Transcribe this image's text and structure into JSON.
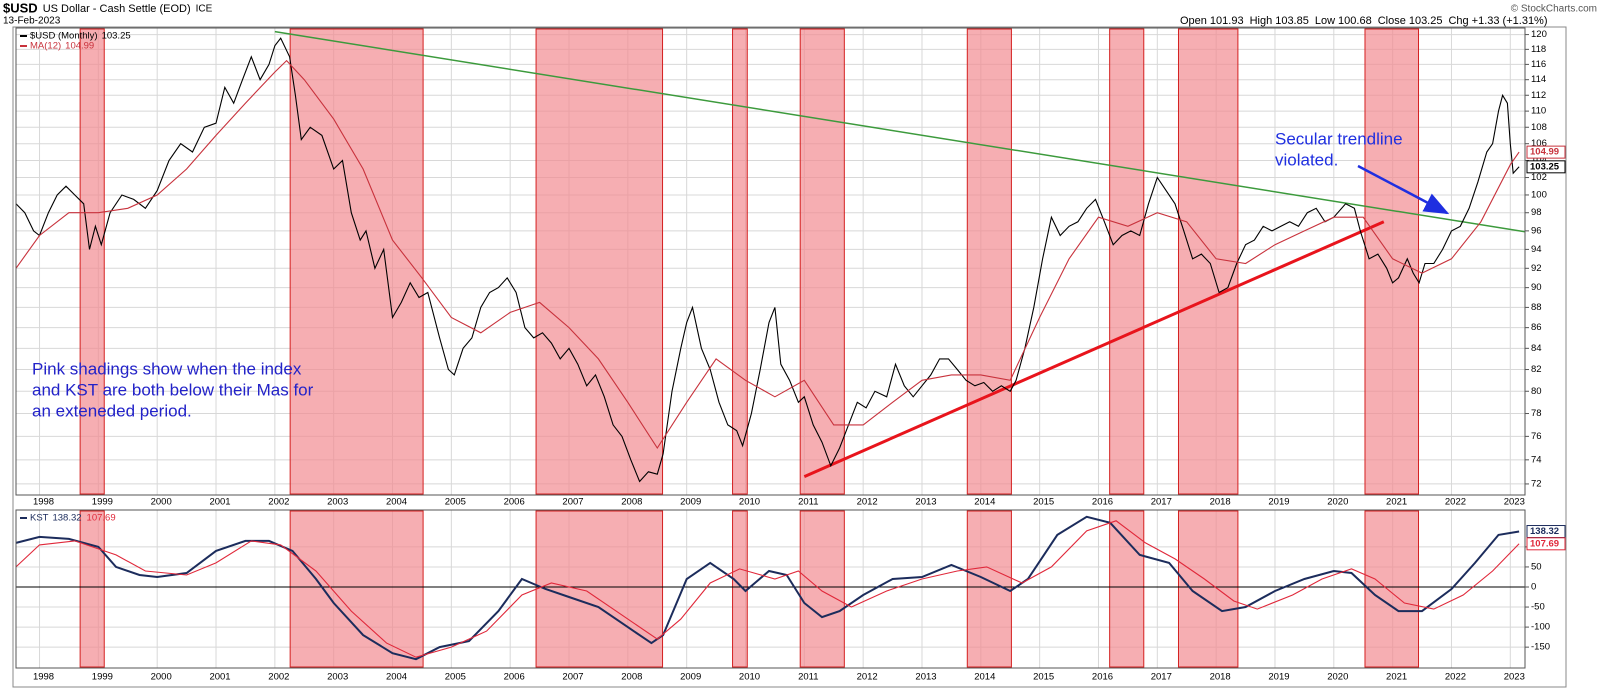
{
  "header": {
    "symbol": "$USD",
    "name": "US Dollar - Cash Settle (EOD)",
    "exchange": "ICE",
    "date": "13-Feb-2023",
    "quote": [
      {
        "label": "Open",
        "value": 101.93
      },
      {
        "label": "High",
        "value": 103.85
      },
      {
        "label": "Low",
        "value": 100.68
      },
      {
        "label": "Close",
        "value": 103.25
      },
      {
        "label": "Chg",
        "value": "+1.33 (+1.31%)"
      }
    ],
    "credit": "© StockCharts.com"
  },
  "chart_data": [
    {
      "type": "line",
      "log": true,
      "grid": true,
      "xlim": [
        1997.6,
        2023.25
      ],
      "xticks": [
        1998,
        1999,
        2000,
        2001,
        2002,
        2003,
        2004,
        2005,
        2006,
        2007,
        2008,
        2009,
        2010,
        2011,
        2012,
        2013,
        2014,
        2015,
        2016,
        2017,
        2018,
        2019,
        2020,
        2021,
        2022,
        2023
      ],
      "ylim": [
        71.1,
        120.9
      ],
      "yticks": [
        72,
        74,
        76,
        78,
        80,
        82,
        84,
        86,
        88,
        90,
        92,
        94,
        96,
        98,
        100,
        102,
        104,
        106,
        108,
        110,
        112,
        114,
        116,
        118,
        120
      ],
      "shaded_periods": [
        [
          1998.69,
          1999.1
        ],
        [
          2002.26,
          2004.52
        ],
        [
          2006.44,
          2008.59
        ],
        [
          2009.78,
          2010.03
        ],
        [
          2010.93,
          2011.68
        ],
        [
          2013.77,
          2014.52
        ],
        [
          2016.19,
          2016.77
        ],
        [
          2017.36,
          2018.37
        ],
        [
          2020.53,
          2021.44
        ]
      ],
      "shade_color": "#f28b92",
      "series": [
        {
          "name": "$USD (Monthly)",
          "color": "#000000",
          "x": [
            1997.6,
            1997.75,
            1997.9,
            1998.0,
            1998.15,
            1998.3,
            1998.45,
            1998.6,
            1998.75,
            1998.85,
            1998.95,
            1999.05,
            1999.2,
            1999.4,
            1999.6,
            1999.8,
            2000.0,
            2000.2,
            2000.4,
            2000.6,
            2000.8,
            2001.0,
            2001.15,
            2001.3,
            2001.45,
            2001.6,
            2001.75,
            2001.9,
            2002.0,
            2002.1,
            2002.25,
            2002.35,
            2002.45,
            2002.6,
            2002.8,
            2003.0,
            2003.15,
            2003.3,
            2003.45,
            2003.55,
            2003.7,
            2003.85,
            2004.0,
            2004.15,
            2004.3,
            2004.45,
            2004.6,
            2004.8,
            2004.95,
            2005.05,
            2005.2,
            2005.35,
            2005.5,
            2005.65,
            2005.8,
            2005.95,
            2006.1,
            2006.25,
            2006.4,
            2006.55,
            2006.7,
            2006.85,
            2007.0,
            2007.15,
            2007.3,
            2007.45,
            2007.6,
            2007.75,
            2007.9,
            2008.05,
            2008.2,
            2008.35,
            2008.5,
            2008.6,
            2008.75,
            2008.9,
            2009.0,
            2009.1,
            2009.25,
            2009.4,
            2009.55,
            2009.7,
            2009.85,
            2009.95,
            2010.1,
            2010.25,
            2010.4,
            2010.5,
            2010.6,
            2010.75,
            2010.9,
            2011.0,
            2011.15,
            2011.3,
            2011.45,
            2011.6,
            2011.75,
            2011.9,
            2012.05,
            2012.2,
            2012.4,
            2012.55,
            2012.7,
            2012.85,
            2013.0,
            2013.15,
            2013.3,
            2013.45,
            2013.6,
            2013.75,
            2013.9,
            2014.05,
            2014.2,
            2014.35,
            2014.5,
            2014.6,
            2014.75,
            2014.9,
            2015.05,
            2015.2,
            2015.35,
            2015.5,
            2015.65,
            2015.8,
            2015.95,
            2016.1,
            2016.25,
            2016.4,
            2016.55,
            2016.7,
            2016.85,
            2017.0,
            2017.15,
            2017.3,
            2017.45,
            2017.6,
            2017.75,
            2017.9,
            2018.05,
            2018.2,
            2018.35,
            2018.5,
            2018.65,
            2018.8,
            2018.95,
            2019.1,
            2019.25,
            2019.4,
            2019.55,
            2019.7,
            2019.85,
            2020.0,
            2020.2,
            2020.35,
            2020.45,
            2020.6,
            2020.75,
            2020.9,
            2021.0,
            2021.1,
            2021.25,
            2021.35,
            2021.45,
            2021.55,
            2021.7,
            2021.85,
            2022.0,
            2022.15,
            2022.3,
            2022.45,
            2022.6,
            2022.7,
            2022.8,
            2022.87,
            2022.95,
            2023.0,
            2023.05,
            2023.15
          ],
          "values": [
            99,
            98,
            96,
            95.5,
            98,
            100,
            101,
            100,
            99,
            94,
            96.5,
            94.5,
            98,
            100,
            99.5,
            98.5,
            100.5,
            104,
            106,
            105,
            108,
            108.5,
            113,
            111,
            114,
            117,
            114,
            116,
            118.5,
            119.5,
            117,
            112,
            106.5,
            108,
            107,
            103,
            104,
            98,
            95,
            96,
            92,
            94,
            87,
            88.5,
            90.5,
            89,
            89.5,
            85,
            82,
            81.5,
            84,
            85,
            88,
            89.5,
            90,
            91,
            89.5,
            86,
            85,
            85.5,
            84.5,
            83,
            84,
            82.5,
            80.5,
            81.5,
            79.5,
            77,
            76,
            74,
            72.2,
            73,
            72.8,
            74.5,
            80,
            84,
            86.5,
            88,
            84,
            82,
            79,
            77,
            76.5,
            75.2,
            78,
            82,
            86.5,
            88,
            82.5,
            81,
            79,
            79.5,
            77,
            75.5,
            73.5,
            75,
            77,
            79,
            78.5,
            80,
            79.5,
            82.5,
            80.5,
            79.5,
            80.5,
            81.5,
            83,
            83,
            82,
            81,
            80.5,
            80.8,
            80,
            80.5,
            80,
            81,
            84,
            88,
            93,
            97.5,
            95.5,
            96.5,
            97,
            98.5,
            99.5,
            97,
            94.5,
            95.5,
            96,
            95.5,
            99,
            102,
            100.5,
            99,
            96,
            93,
            93.5,
            92.5,
            89.5,
            90,
            92.5,
            94.5,
            95,
            96.5,
            96,
            96.5,
            97,
            96.5,
            98,
            98.5,
            97,
            97.5,
            99,
            98.5,
            96,
            93,
            93.5,
            92,
            90.5,
            91,
            93,
            91.5,
            90.5,
            92.5,
            92.5,
            94,
            96,
            96.5,
            98.5,
            101.5,
            105,
            106,
            110,
            112,
            111,
            106,
            102.5,
            103.25
          ]
        },
        {
          "name": "MA(12)",
          "color": "#c8323c",
          "x": [
            1997.6,
            1998.0,
            1998.5,
            1999.0,
            1999.5,
            2000.0,
            2000.5,
            2001.0,
            2001.5,
            2002.0,
            2002.2,
            2002.5,
            2003.0,
            2003.5,
            2004.0,
            2004.5,
            2005.0,
            2005.5,
            2006.0,
            2006.5,
            2007.0,
            2007.5,
            2008.0,
            2008.5,
            2009.0,
            2009.5,
            2010.0,
            2010.5,
            2011.0,
            2011.5,
            2012.0,
            2012.5,
            2013.0,
            2013.5,
            2014.0,
            2014.5,
            2015.0,
            2015.5,
            2016.0,
            2016.5,
            2017.0,
            2017.5,
            2018.0,
            2018.5,
            2019.0,
            2019.5,
            2020.0,
            2020.5,
            2021.0,
            2021.5,
            2022.0,
            2022.5,
            2023.0,
            2023.15
          ],
          "values": [
            92,
            95.5,
            98,
            98,
            98.5,
            100,
            103,
            107,
            111,
            115,
            116.5,
            114,
            109,
            103,
            95,
            91,
            87,
            85.5,
            87.5,
            88.5,
            86,
            83,
            79,
            75,
            79,
            83,
            81,
            79.5,
            81,
            77,
            77,
            79,
            81,
            81.5,
            81.5,
            81,
            87,
            93,
            97.5,
            96.5,
            98,
            97,
            93,
            92.5,
            94.5,
            96,
            97.5,
            97.5,
            93,
            91.5,
            93,
            97,
            103.5,
            104.99
          ]
        }
      ],
      "trendlines": [
        {
          "color": "#3c9a3c",
          "x": [
            2002.0,
            2023.25
          ],
          "y": [
            120.4,
            95.9
          ]
        },
        {
          "color": "#e8141c",
          "x": [
            2011.0,
            2020.85
          ],
          "y": [
            72.6,
            97.0
          ]
        }
      ],
      "annotations": [
        {
          "lines": [
            "Secular trendline",
            "violated."
          ],
          "color": "#1f2fe0"
        },
        {
          "lines": [
            "Pink shadings show when the index",
            "and KST are both below their Mas for",
            "an exteneded period."
          ],
          "color": "#2222c8"
        }
      ]
    },
    {
      "type": "line",
      "grid": true,
      "zero_line": true,
      "xlim": [
        1997.6,
        2023.25
      ],
      "xticks": [
        1998,
        1999,
        2000,
        2001,
        2002,
        2003,
        2004,
        2005,
        2006,
        2007,
        2008,
        2009,
        2010,
        2011,
        2012,
        2013,
        2014,
        2015,
        2016,
        2017,
        2018,
        2019,
        2020,
        2021,
        2022,
        2023
      ],
      "ylim": [
        -202,
        192
      ],
      "yticks": [
        -150,
        -100,
        -50,
        0,
        50,
        100
      ],
      "series": [
        {
          "name": "KST",
          "color": "#1c2c5c",
          "x": [
            1997.6,
            1998.0,
            1998.5,
            1999.0,
            1999.3,
            1999.7,
            2000.0,
            2000.5,
            2001.0,
            2001.5,
            2001.9,
            2002.3,
            2002.7,
            2003.0,
            2003.5,
            2004.0,
            2004.4,
            2004.8,
            2005.3,
            2005.8,
            2006.2,
            2006.6,
            2007.0,
            2007.5,
            2008.0,
            2008.4,
            2008.6,
            2009.0,
            2009.4,
            2009.8,
            2010.0,
            2010.4,
            2010.7,
            2011.0,
            2011.3,
            2011.6,
            2012.0,
            2012.5,
            2013.0,
            2013.5,
            2014.0,
            2014.5,
            2014.8,
            2015.3,
            2015.8,
            2016.2,
            2016.7,
            2017.2,
            2017.6,
            2018.1,
            2018.5,
            2019.0,
            2019.5,
            2020.0,
            2020.3,
            2020.7,
            2021.1,
            2021.5,
            2022.0,
            2022.4,
            2022.8,
            2023.15
          ],
          "values": [
            110,
            125,
            120,
            100,
            50,
            30,
            25,
            35,
            90,
            115,
            115,
            90,
            20,
            -40,
            -120,
            -165,
            -180,
            -150,
            -135,
            -60,
            20,
            -5,
            -25,
            -50,
            -100,
            -140,
            -120,
            20,
            60,
            20,
            -10,
            40,
            30,
            -40,
            -75,
            -60,
            -20,
            20,
            25,
            55,
            25,
            -10,
            20,
            130,
            175,
            160,
            80,
            60,
            -10,
            -60,
            -50,
            -10,
            20,
            40,
            35,
            -20,
            -60,
            -60,
            -5,
            60,
            130,
            138.32
          ]
        },
        {
          "color": "#e0283a",
          "x": [
            1997.6,
            1998.0,
            1998.6,
            1999.3,
            1999.8,
            2000.5,
            2001.0,
            2001.6,
            2002.1,
            2002.7,
            2003.3,
            2003.9,
            2004.4,
            2005.0,
            2005.6,
            2006.2,
            2006.7,
            2007.3,
            2007.9,
            2008.5,
            2008.9,
            2009.4,
            2009.9,
            2010.5,
            2010.9,
            2011.3,
            2011.8,
            2012.4,
            2013.0,
            2013.6,
            2014.1,
            2014.7,
            2015.2,
            2015.8,
            2016.3,
            2016.8,
            2017.3,
            2017.8,
            2018.3,
            2018.7,
            2019.3,
            2019.8,
            2020.3,
            2020.7,
            2021.2,
            2021.7,
            2022.2,
            2022.7,
            2023.15
          ],
          "values": [
            50,
            105,
            115,
            80,
            40,
            30,
            60,
            115,
            105,
            40,
            -60,
            -140,
            -175,
            -150,
            -110,
            -20,
            10,
            -10,
            -70,
            -130,
            -80,
            10,
            45,
            20,
            40,
            -10,
            -50,
            -10,
            20,
            40,
            50,
            10,
            50,
            140,
            165,
            110,
            70,
            20,
            -35,
            -55,
            -20,
            20,
            45,
            20,
            -40,
            -55,
            -20,
            40,
            107.69
          ]
        }
      ]
    }
  ]
}
